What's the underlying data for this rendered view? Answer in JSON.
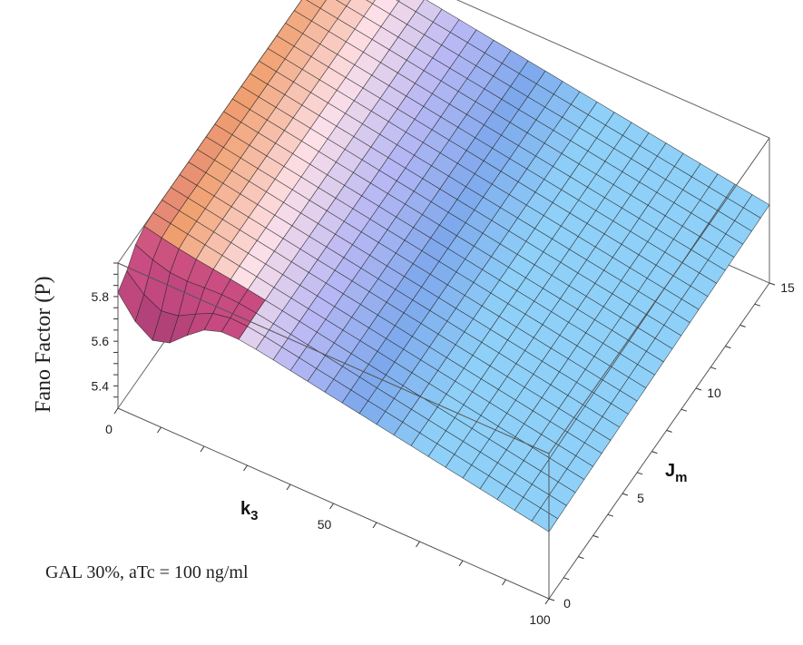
{
  "chart_data": {
    "type": "surface3d",
    "x_axis": {
      "label_main": "k",
      "label_sub": "3",
      "range": [
        0,
        100
      ],
      "ticks": [
        "0",
        "50",
        "100"
      ]
    },
    "y_axis": {
      "label_main": "J",
      "label_sub": "m",
      "range": [
        0,
        15
      ],
      "ticks": [
        "0",
        "5",
        "10",
        "15"
      ]
    },
    "z_axis": {
      "label": "Fano Factor (P)",
      "ticks": [
        "5.4",
        "5.6",
        "5.8"
      ],
      "range": [
        5.3,
        5.95
      ]
    },
    "surface_description_values": {
      "corner_k0_J0": 5.92,
      "corner_k0_J15": 5.95,
      "corner_k100_J0": 5.32,
      "corner_k100_J15": 5.65,
      "min_near_k0_J0": 5.52
    },
    "grid_divisions": 25,
    "colormap": [
      "#6b2a5a",
      "#c84a82",
      "#f0a070",
      "#fde0e8",
      "#b8b8f4",
      "#7ea8ec",
      "#8ed0f8"
    ]
  },
  "annotation": "GAL 30%, aTc = 100 ng/ml"
}
